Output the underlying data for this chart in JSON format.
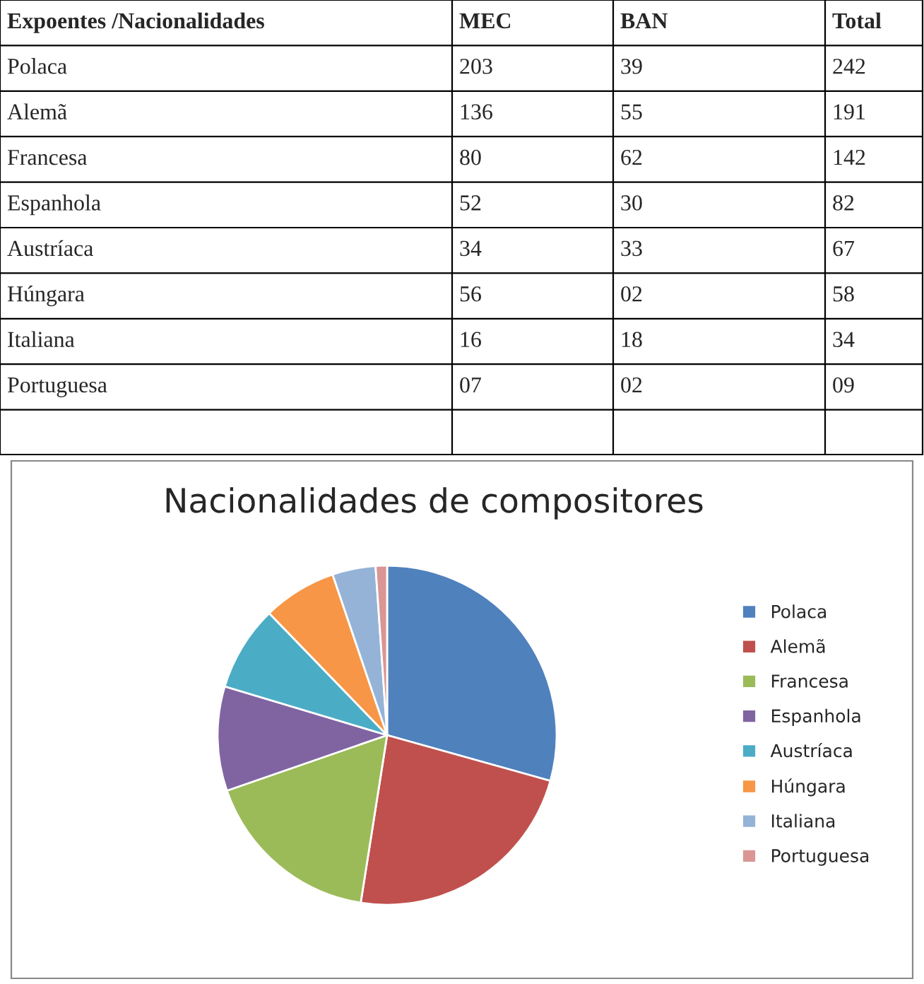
{
  "chart_data": [
    {
      "type": "other",
      "xlabel": "Expoentes /Nacionalidades",
      "data_labels": true,
      "categories": [
        "Polaca",
        "Alemã",
        "Francesa",
        "Espanhola",
        "Austríaca",
        "Húngara",
        "Italiana",
        "Portuguesa",
        null
      ],
      "series": [
        {
          "name": "MEC",
          "values": [
            203,
            136,
            80,
            52,
            34,
            56,
            16,
            7,
            null
          ],
          "value_labels": [
            "203",
            "136",
            "80",
            "52",
            "34",
            "56",
            "16",
            "07",
            null
          ]
        },
        {
          "name": "BAN",
          "values": [
            39,
            55,
            62,
            30,
            33,
            2,
            18,
            2,
            null
          ],
          "value_labels": [
            "39",
            "55",
            "62",
            "30",
            "33",
            "02",
            "18",
            "02",
            null
          ]
        },
        {
          "name": "Total",
          "values": [
            242,
            191,
            142,
            82,
            67,
            58,
            34,
            9,
            null
          ],
          "value_labels": [
            "242",
            "191",
            "142",
            "82",
            "67",
            "58",
            "34",
            "09",
            null
          ]
        }
      ]
    },
    {
      "type": "pie",
      "title": "Nacionalidades de compositores",
      "legend": "right",
      "categories": [
        "Polaca",
        "Alemã",
        "Francesa",
        "Espanhola",
        "Austríaca",
        "Húngara",
        "Italiana",
        "Portuguesa"
      ],
      "values": [
        29.34,
        23.15,
        17.21,
        9.94,
        8.12,
        7.03,
        4.12,
        1.09
      ],
      "colors": [
        "#4f81bd",
        "#c0504d",
        "#9bbb59",
        "#8064a2",
        "#4bacc6",
        "#f79646",
        "#95b3d7",
        "#d99694"
      ]
    }
  ]
}
